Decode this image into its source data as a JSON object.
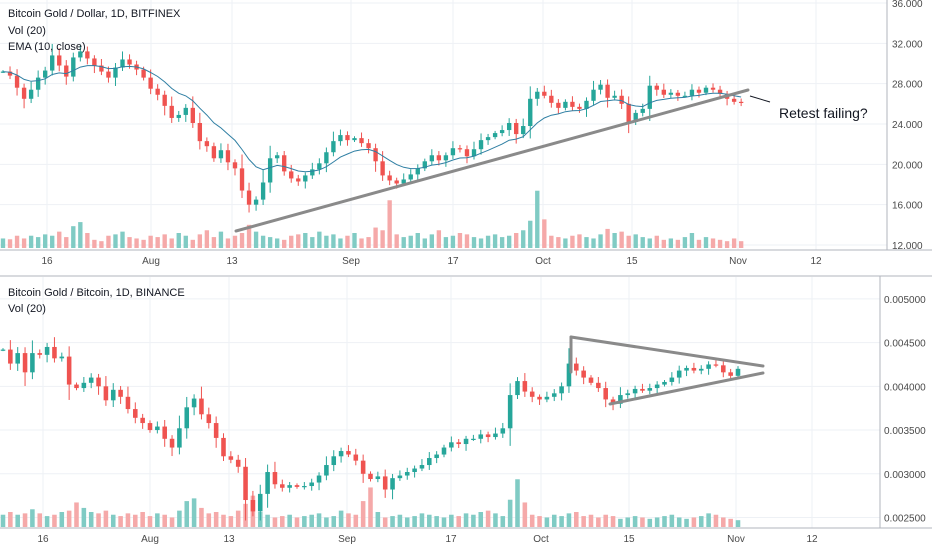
{
  "colors": {
    "up": "#26a69a",
    "down": "#ef5350",
    "vol_up": "#80cbc4",
    "vol_down": "#f5a9a9",
    "ema": "#2f7fa3",
    "trend": "#8a8a8a",
    "grid": "#eef1f5",
    "axis": "#b2b5be"
  },
  "chart_data": [
    {
      "type": "candlestick",
      "legend": [
        "Bitcoin Gold / Dollar, 1D, BITFINEX",
        "Vol (20)",
        "EMA (10, close)"
      ],
      "annotation": "Retest failing?",
      "y_ticks": [
        "36.000",
        "32.000",
        "28.000",
        "24.000",
        "20.000",
        "16.000",
        "12.000"
      ],
      "ylim": [
        12,
        36
      ],
      "x_ticks": [
        "16",
        "Aug",
        "13",
        "Sep",
        "17",
        "Oct",
        "15",
        "Nov",
        "12"
      ],
      "series": {
        "close": [
          29.2,
          28.8,
          27.6,
          26.5,
          27.4,
          28.6,
          29.3,
          30.8,
          29.8,
          28.7,
          30.6,
          31.2,
          30.5,
          29.8,
          29.2,
          28.6,
          29.6,
          30.4,
          29.9,
          29.4,
          28.6,
          27.5,
          26.9,
          25.8,
          24.6,
          24.9,
          25.6,
          24.1,
          22.3,
          21.8,
          20.6,
          21.4,
          20.2,
          19.6,
          17.4,
          16.0,
          16.5,
          18.2,
          20.6,
          20.9,
          19.3,
          18.6,
          18.3,
          18.9,
          19.5,
          20.1,
          21.2,
          22.3,
          22.9,
          22.4,
          22.6,
          22.1,
          21.6,
          20.3,
          18.9,
          18.4,
          18.1,
          18.5,
          19.0,
          19.6,
          20.3,
          20.9,
          20.4,
          20.9,
          21.6,
          21.5,
          20.8,
          21.5,
          22.4,
          22.7,
          23.1,
          23.4,
          24.1,
          23.0,
          23.8,
          26.5,
          27.2,
          26.8,
          26.1,
          25.6,
          26.2,
          25.7,
          25.5,
          26.3,
          27.4,
          27.9,
          26.6,
          26.8,
          26.0,
          24.2,
          25.1,
          25.5,
          27.8,
          27.4,
          26.9,
          27.1,
          26.8,
          26.8,
          27.4,
          27.1,
          27.6,
          27.4,
          27.0,
          26.5,
          26.2,
          26.1
        ],
        "volume": [
          0.35,
          0.32,
          0.45,
          0.35,
          0.45,
          0.4,
          0.5,
          0.45,
          0.6,
          0.4,
          0.8,
          0.95,
          0.55,
          0.3,
          0.25,
          0.45,
          0.5,
          0.6,
          0.4,
          0.35,
          0.3,
          0.45,
          0.4,
          0.5,
          0.35,
          0.55,
          0.45,
          0.3,
          0.5,
          0.65,
          0.4,
          0.6,
          0.35,
          0.45,
          0.55,
          0.85,
          0.6,
          0.45,
          0.4,
          0.35,
          0.3,
          0.45,
          0.5,
          0.55,
          0.4,
          0.6,
          0.45,
          0.5,
          0.35,
          0.45,
          0.55,
          0.35,
          0.4,
          0.75,
          0.65,
          1.75,
          0.5,
          0.4,
          0.45,
          0.55,
          0.35,
          0.5,
          0.65,
          0.4,
          0.45,
          0.55,
          0.5,
          0.4,
          0.35,
          0.45,
          0.5,
          0.4,
          0.45,
          0.55,
          0.65,
          1.0,
          2.1,
          1.05,
          0.45,
          0.4,
          0.35,
          0.45,
          0.5,
          0.4,
          0.35,
          0.5,
          0.7,
          0.55,
          0.6,
          0.45,
          0.5,
          0.4,
          0.35,
          0.45,
          0.3,
          0.35,
          0.3,
          0.4,
          0.55,
          0.3,
          0.4,
          0.35,
          0.3,
          0.25,
          0.35,
          0.25
        ]
      }
    },
    {
      "type": "candlestick",
      "legend": [
        "Bitcoin Gold / Bitcoin, 1D, BINANCE",
        "Vol (20)"
      ],
      "y_ticks": [
        "0.005000",
        "0.004500",
        "0.004000",
        "0.003500",
        "0.003000",
        "0.002500"
      ],
      "ylim": [
        0.00238,
        0.00525
      ],
      "x_ticks": [
        "16",
        "Aug",
        "13",
        "Sep",
        "17",
        "Oct",
        "15",
        "Nov",
        "12"
      ],
      "series": {
        "close": [
          0.00442,
          0.00426,
          0.00438,
          0.00416,
          0.00438,
          0.00436,
          0.00445,
          0.00432,
          0.00434,
          0.00402,
          0.00398,
          0.00404,
          0.0041,
          0.004,
          0.00384,
          0.00396,
          0.00388,
          0.00374,
          0.00364,
          0.00358,
          0.0035,
          0.00354,
          0.0034,
          0.0033,
          0.00352,
          0.00376,
          0.00386,
          0.00368,
          0.00358,
          0.00341,
          0.0032,
          0.00316,
          0.00308,
          0.0027,
          0.00257,
          0.00277,
          0.00302,
          0.00288,
          0.00284,
          0.00287,
          0.00285,
          0.00286,
          0.0029,
          0.00298,
          0.0031,
          0.0032,
          0.00326,
          0.00322,
          0.00315,
          0.003,
          0.00294,
          0.00297,
          0.00282,
          0.00295,
          0.00298,
          0.00302,
          0.00306,
          0.0031,
          0.00318,
          0.00322,
          0.0033,
          0.00336,
          0.00334,
          0.0034,
          0.0034,
          0.00345,
          0.00342,
          0.00346,
          0.00352,
          0.0039,
          0.00406,
          0.00394,
          0.00388,
          0.00385,
          0.00388,
          0.00392,
          0.004,
          0.00426,
          0.00418,
          0.0041,
          0.00404,
          0.00398,
          0.00385,
          0.0038,
          0.0039,
          0.00392,
          0.00397,
          0.00395,
          0.00398,
          0.00402,
          0.00405,
          0.0041,
          0.00418,
          0.00421,
          0.00418,
          0.0042,
          0.00425,
          0.00424,
          0.00416,
          0.00412,
          0.0042
        ],
        "volume": [
          0.45,
          0.55,
          0.45,
          0.5,
          0.65,
          0.5,
          0.4,
          0.45,
          0.55,
          0.6,
          0.9,
          0.7,
          0.55,
          0.5,
          0.6,
          0.45,
          0.4,
          0.5,
          0.45,
          0.55,
          0.4,
          0.5,
          0.45,
          0.35,
          0.6,
          0.95,
          1.05,
          0.7,
          0.5,
          0.55,
          0.45,
          0.4,
          0.6,
          0.85,
          1.15,
          0.55,
          0.45,
          0.35,
          0.4,
          0.45,
          0.35,
          0.4,
          0.45,
          0.5,
          0.35,
          0.4,
          0.6,
          0.5,
          0.45,
          0.95,
          1.45,
          0.55,
          0.35,
          0.4,
          0.45,
          0.35,
          0.4,
          0.5,
          0.45,
          0.4,
          0.35,
          0.45,
          0.4,
          0.5,
          0.45,
          0.55,
          0.6,
          0.5,
          0.4,
          1.0,
          1.75,
          0.9,
          0.45,
          0.4,
          0.35,
          0.45,
          0.4,
          0.5,
          0.55,
          0.4,
          0.45,
          0.35,
          0.45,
          0.4,
          0.3,
          0.35,
          0.4,
          0.35,
          0.3,
          0.35,
          0.4,
          0.45,
          0.35,
          0.3,
          0.35,
          0.4,
          0.5,
          0.45,
          0.35,
          0.3,
          0.25
        ]
      }
    }
  ]
}
